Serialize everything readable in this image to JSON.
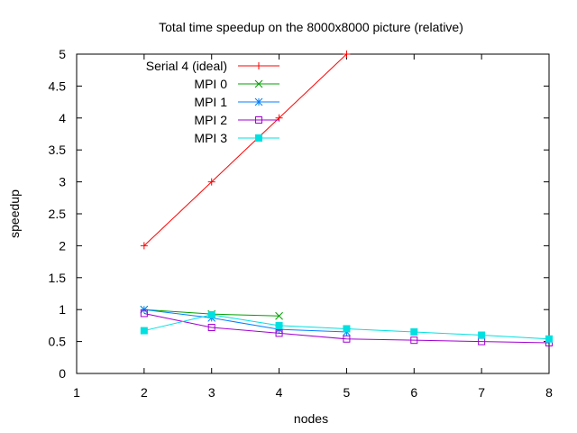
{
  "chart_data": {
    "type": "line",
    "title": "Total time speedup on the 8000x8000 picture (relative)",
    "xlabel": "nodes",
    "ylabel": "speedup",
    "xlim": [
      1,
      8
    ],
    "ylim": [
      0,
      5
    ],
    "x_ticks": [
      "1",
      "2",
      "3",
      "4",
      "5",
      "6",
      "7",
      "8"
    ],
    "y_ticks": [
      "0",
      "0.5",
      "1",
      "1.5",
      "2",
      "2.5",
      "3",
      "3.5",
      "4",
      "4.5",
      "5"
    ],
    "grid": false,
    "legend_position": "top-left",
    "series": [
      {
        "name": "Serial 4 (ideal)",
        "color": "#ff0000",
        "marker": "plus",
        "x": [
          2,
          3,
          4,
          5
        ],
        "values": [
          2,
          3,
          4,
          5
        ]
      },
      {
        "name": "MPI 0",
        "color": "#00a000",
        "marker": "cross",
        "x": [
          2,
          3,
          4
        ],
        "values": [
          1.0,
          0.93,
          0.9
        ]
      },
      {
        "name": "MPI 1",
        "color": "#0080ff",
        "marker": "star",
        "x": [
          2,
          3,
          4,
          5
        ],
        "values": [
          1.0,
          0.87,
          0.69,
          0.65
        ]
      },
      {
        "name": "MPI 2",
        "color": "#a000d0",
        "marker": "open-square",
        "x": [
          2,
          3,
          4,
          5,
          6,
          7,
          8
        ],
        "values": [
          0.94,
          0.72,
          0.63,
          0.54,
          0.52,
          0.5,
          0.48
        ]
      },
      {
        "name": "MPI 3",
        "color": "#00e0e0",
        "marker": "filled-square",
        "x": [
          2,
          3,
          4,
          5,
          6,
          7,
          8
        ],
        "values": [
          0.67,
          0.92,
          0.75,
          0.7,
          0.65,
          0.6,
          0.54
        ]
      }
    ]
  }
}
